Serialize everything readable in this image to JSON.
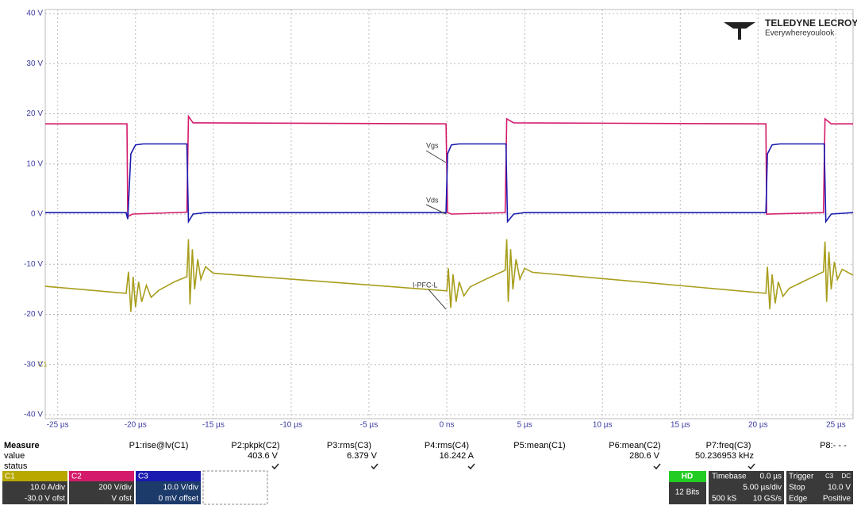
{
  "chart_data": {
    "type": "line",
    "xlim": [
      -25.8,
      26.1
    ],
    "ylim": [
      -40.8,
      40.8
    ],
    "grid": true,
    "xticks": [
      {
        "value": -25,
        "label": "-25 µs"
      },
      {
        "value": -20,
        "label": "-20 µs"
      },
      {
        "value": -15,
        "label": "-15 µs"
      },
      {
        "value": -10,
        "label": "-10 µs"
      },
      {
        "value": -5,
        "label": "-5 µs"
      },
      {
        "value": 0,
        "label": "0 ns"
      },
      {
        "value": 5,
        "label": "5 µs"
      },
      {
        "value": 10,
        "label": "10 µs"
      },
      {
        "value": 15,
        "label": "15 µs"
      },
      {
        "value": 20,
        "label": "20 µs"
      },
      {
        "value": 25,
        "label": "25 µs"
      }
    ],
    "yticks": [
      {
        "value": 40,
        "label": "40 V"
      },
      {
        "value": 30,
        "label": "30 V"
      },
      {
        "value": 20,
        "label": "20 V"
      },
      {
        "value": 10,
        "label": "10 V"
      },
      {
        "value": 0,
        "label": "0 V"
      },
      {
        "value": -10,
        "label": "-10 V"
      },
      {
        "value": -20,
        "label": "-20 V"
      },
      {
        "value": -30,
        "label": "-30 V"
      },
      {
        "value": -40,
        "label": "-40 V"
      }
    ],
    "series": [
      {
        "name": "Vds",
        "color": "#d41a6a",
        "x": [
          -25.8,
          -20.55,
          -20.5,
          -20.2,
          -16.7,
          -16.6,
          -16.3,
          -0.05,
          0.05,
          0.3,
          3.75,
          3.85,
          4.3,
          20.5,
          20.55,
          24.2,
          24.3,
          24.7,
          26.1
        ],
        "values": [
          18,
          18,
          -0.5,
          0,
          0.4,
          19.5,
          18.2,
          18,
          0.3,
          0,
          0.3,
          19,
          18.2,
          18,
          0,
          0.3,
          19,
          18,
          18
        ]
      },
      {
        "name": "Vgs",
        "color": "#1a1ab0",
        "x": [
          -25.8,
          -20.6,
          -20.5,
          -20.3,
          -20.0,
          -19.5,
          -16.7,
          -16.6,
          -16.3,
          -15.5,
          -0.05,
          0.05,
          0.3,
          0.8,
          3.8,
          3.9,
          4.3,
          5,
          20.5,
          20.6,
          20.9,
          21.4,
          24.25,
          24.35,
          24.7,
          26.1
        ],
        "values": [
          0.3,
          0.3,
          -1,
          12,
          13.8,
          14,
          14,
          -1.5,
          0,
          0.3,
          0.3,
          12,
          13.8,
          14,
          14,
          -1.5,
          0,
          0.3,
          0.3,
          12,
          13.8,
          14,
          14,
          -1.5,
          0,
          0.3
        ]
      },
      {
        "name": "I-PFC-L",
        "color": "#a89e1c",
        "x": [
          -25.8,
          -20.6,
          -20.45,
          -20.3,
          -20.15,
          -20.0,
          -19.8,
          -19.6,
          -19.3,
          -19.0,
          -18.5,
          -17.5,
          -16.7,
          -16.6,
          -16.5,
          -16.35,
          -16.2,
          -16.0,
          -15.8,
          -15.5,
          -15.0,
          0,
          0.1,
          0.25,
          0.4,
          0.6,
          0.8,
          1.1,
          1.5,
          2.5,
          3.75,
          3.85,
          3.95,
          4.1,
          4.25,
          4.45,
          4.7,
          5.0,
          5.5,
          20.5,
          20.6,
          20.75,
          20.9,
          21.1,
          21.3,
          21.6,
          22,
          23,
          24.2,
          24.3,
          24.4,
          24.55,
          24.7,
          24.9,
          25.1,
          25.4,
          26.1
        ],
        "values": [
          -14.4,
          -15.8,
          -11.5,
          -19.5,
          -12.5,
          -18.5,
          -13.5,
          -17.5,
          -14.2,
          -16.6,
          -15.2,
          -13.5,
          -12.5,
          -5,
          -18,
          -7,
          -15,
          -9,
          -13,
          -10.5,
          -11.8,
          -15.3,
          -10.8,
          -18.7,
          -12,
          -17.5,
          -13.5,
          -16.3,
          -14.5,
          -13,
          -11.2,
          -5,
          -17.5,
          -7,
          -15,
          -9,
          -13,
          -10.8,
          -11.6,
          -15.8,
          -10.5,
          -19,
          -12,
          -17.8,
          -13.5,
          -16.4,
          -14.8,
          -13.3,
          -11.5,
          -5.5,
          -17.5,
          -7.5,
          -15,
          -9.5,
          -13,
          -11,
          -12.2
        ]
      }
    ]
  },
  "logo": {
    "brand": "TELEDYNE LECROY",
    "tagline": "Everywhereyoulook"
  },
  "channel_marker": "C1",
  "measure": {
    "title": "Measure",
    "row_labels": [
      "value",
      "status"
    ],
    "params": [
      {
        "name": "P1:rise@lv(C1)"
      },
      {
        "name": "P2:pkpk(C2)",
        "value": "403.6 V"
      },
      {
        "name": "P3:rms(C3)",
        "value": "6.379 V"
      },
      {
        "name": "P4:rms(C4)",
        "value": "16.242 A"
      },
      {
        "name": "P5:mean(C1)"
      },
      {
        "name": "P6:mean(C2)",
        "value": "280.6 V"
      },
      {
        "name": "P7:freq(C3)",
        "value": "50.236953 kHz"
      },
      {
        "name": "P8:- - -"
      }
    ]
  },
  "channels": [
    {
      "id": "C1",
      "scale": "10.0 A/div",
      "offset": "-30.0 V ofst"
    },
    {
      "id": "C2",
      "scale": "200 V/div",
      "offset": "V ofst"
    },
    {
      "id": "C3",
      "scale": "10.0 V/div",
      "offset": "0 mV offset"
    }
  ],
  "status_boxes": {
    "hd": {
      "label": "HD",
      "bits": "12 Bits"
    },
    "timebase": {
      "title": "Timebase",
      "delay": "0.0 µs",
      "div": "5.00 µs/div",
      "samples": "500 kS",
      "rate": "10 GS/s"
    },
    "trigger": {
      "title": "Trigger",
      "mode": "Stop",
      "level": "10.0 V",
      "type": "Edge",
      "slope": "Positive",
      "coupling": "DC",
      "source": "C3"
    }
  }
}
